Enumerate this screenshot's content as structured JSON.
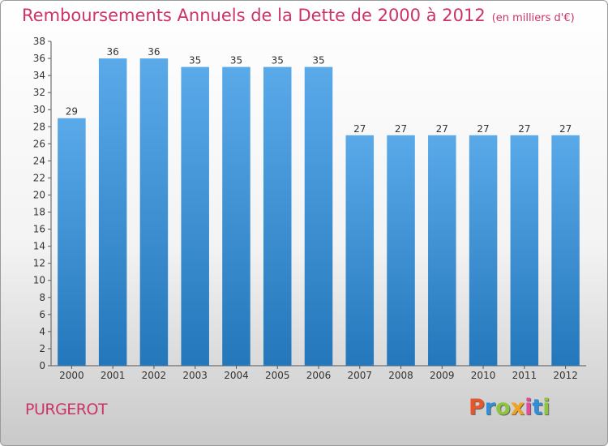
{
  "header": {
    "title": "Remboursements Annuels de la Dette de 2000 à 2012",
    "unit": "(en milliers d'€)"
  },
  "footer": {
    "town": "PURGEROT",
    "logo_text": "Proxiti"
  },
  "colors": {
    "title": "#cc3366",
    "bar_top": "#5aaaea",
    "bar_bottom": "#2377ba",
    "axis": "#555555"
  },
  "chart_data": {
    "type": "bar",
    "title": "Remboursements Annuels de la Dette de 2000 à 2012",
    "subtitle": "(en milliers d'€)",
    "xlabel": "",
    "ylabel": "",
    "categories": [
      "2000",
      "2001",
      "2002",
      "2003",
      "2004",
      "2005",
      "2006",
      "2007",
      "2008",
      "2009",
      "2010",
      "2011",
      "2012"
    ],
    "values": [
      29,
      36,
      36,
      35,
      35,
      35,
      35,
      27,
      27,
      27,
      27,
      27,
      27
    ],
    "ylim": [
      0,
      38
    ],
    "ytick_step": 2,
    "grid": false,
    "legend": "none"
  }
}
